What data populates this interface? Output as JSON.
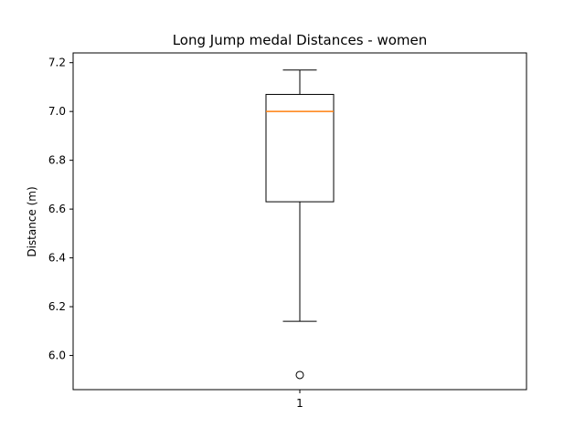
{
  "chart_data": {
    "type": "box",
    "title": "Long Jump medal Distances - women",
    "ylabel": "Distance (m)",
    "xlabel": "",
    "ylim": [
      5.86,
      7.24
    ],
    "yticks": [
      "6.0",
      "6.2",
      "6.4",
      "6.6",
      "6.8",
      "7.0",
      "7.2"
    ],
    "categories": [
      "1"
    ],
    "boxes": [
      {
        "category": "1",
        "whisker_low": 6.14,
        "q1": 6.63,
        "median": 7.0,
        "q3": 7.07,
        "whisker_high": 7.17,
        "outliers": [
          5.92
        ]
      }
    ],
    "grid": false,
    "colors": {
      "box": "#000000",
      "median": "#ff7f0e",
      "outlier": "#000000"
    }
  }
}
